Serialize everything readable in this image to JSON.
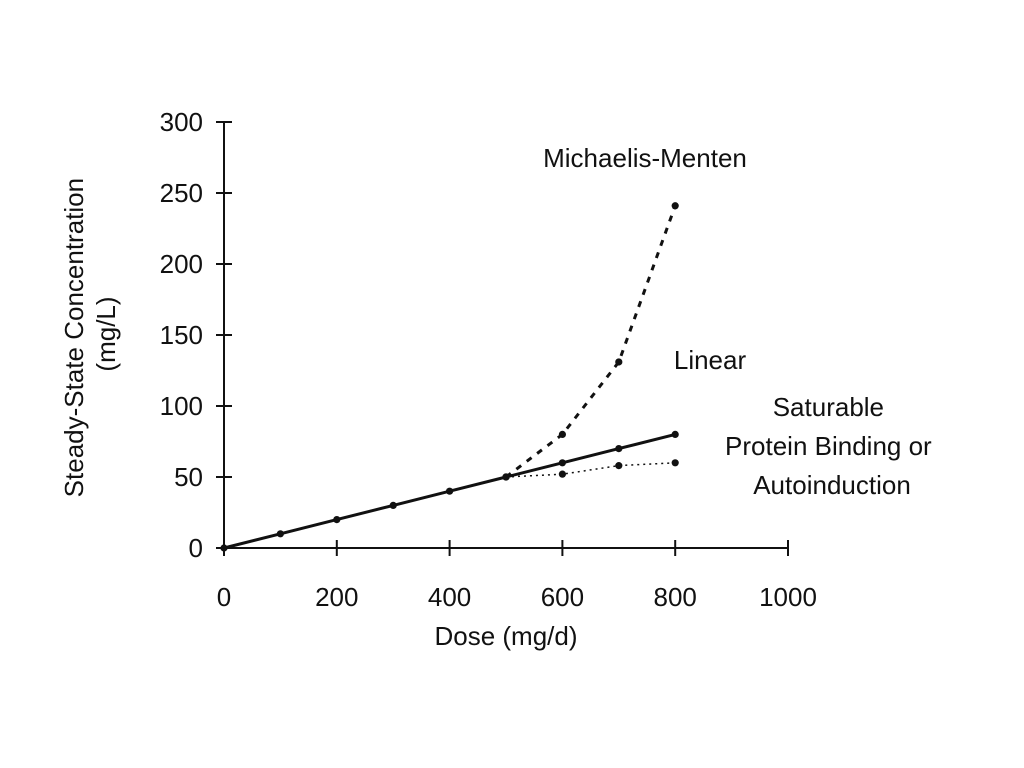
{
  "chart_data": {
    "type": "line",
    "xlabel": "Dose (mg/d)",
    "ylabel_lines": [
      "Steady-State Concentration",
      "(mg/L)"
    ],
    "xlim": [
      0,
      1000
    ],
    "ylim": [
      0,
      300
    ],
    "xticks": [
      0,
      200,
      400,
      600,
      800,
      1000
    ],
    "yticks": [
      0,
      50,
      100,
      150,
      200,
      250,
      300
    ],
    "grid": false,
    "legend": "none",
    "series": [
      {
        "key": "linear",
        "name": "Linear",
        "style": "solid",
        "x": [
          0,
          100,
          200,
          300,
          400,
          500,
          600,
          700,
          800
        ],
        "y": [
          0,
          10,
          20,
          30,
          40,
          50,
          60,
          70,
          80
        ]
      },
      {
        "key": "michaelis",
        "name": "Michaelis-Menten",
        "style": "dashed",
        "x": [
          500,
          600,
          700,
          800
        ],
        "y": [
          50,
          80,
          131,
          241
        ]
      },
      {
        "key": "saturable",
        "name_lines": [
          "Saturable",
          "Protein Binding or",
          "Autoinduction"
        ],
        "style": "dotted",
        "x": [
          500,
          600,
          700,
          800
        ],
        "y": [
          50,
          52,
          58,
          60
        ]
      }
    ],
    "colors": {
      "ink": "#111111"
    }
  }
}
